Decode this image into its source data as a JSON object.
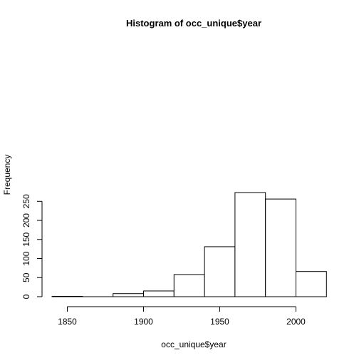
{
  "chart_data": {
    "type": "bar",
    "title": "Histogram of occ_unique$year",
    "xlabel": "occ_unique$year",
    "ylabel": "Frequency",
    "bins": [
      {
        "start": 1840,
        "end": 1860,
        "count": 1
      },
      {
        "start": 1860,
        "end": 1880,
        "count": 0
      },
      {
        "start": 1880,
        "end": 1900,
        "count": 8
      },
      {
        "start": 1900,
        "end": 1920,
        "count": 15
      },
      {
        "start": 1920,
        "end": 1940,
        "count": 58
      },
      {
        "start": 1940,
        "end": 1960,
        "count": 131
      },
      {
        "start": 1960,
        "end": 1980,
        "count": 273
      },
      {
        "start": 1980,
        "end": 2000,
        "count": 256
      },
      {
        "start": 2000,
        "end": 2020,
        "count": 66
      }
    ],
    "xlim": [
      1840,
      2020
    ],
    "ylim": [
      0,
      280
    ],
    "x_ticks": [
      1850,
      1900,
      1950,
      2000
    ],
    "y_ticks": [
      0,
      50,
      100,
      150,
      200,
      250
    ],
    "grid": false,
    "colors": {
      "bar_fill": "#ffffff",
      "bar_stroke": "#000000",
      "axis": "#000000"
    }
  }
}
